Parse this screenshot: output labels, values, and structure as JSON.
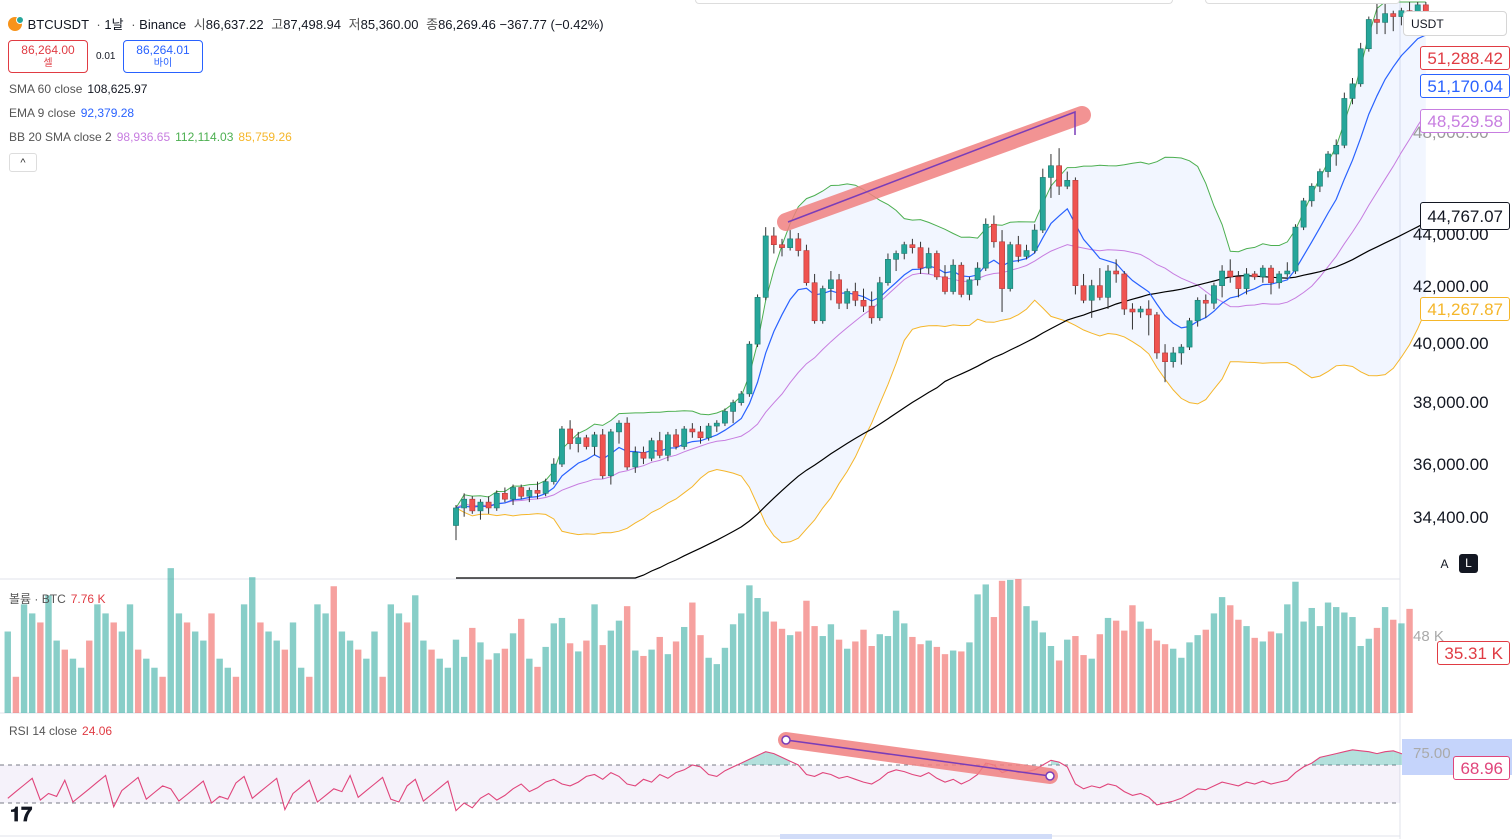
{
  "header": {
    "symbol": "BTCUSDT",
    "interval": "1날",
    "exchange": "Binance",
    "open_label": "시",
    "open": "86,637.22",
    "high_label": "고",
    "high": "87,498.94",
    "low_label": "저",
    "low": "85,360.00",
    "close_label": "종",
    "close": "86,269.46",
    "change": "−367.77 (−0.42%)"
  },
  "trade": {
    "sell_price": "86,264.00",
    "sell_label": "셀",
    "spread": "0.01",
    "buy_price": "86,264.01",
    "buy_label": "바이"
  },
  "indicators": {
    "sma_label": "SMA 60 close",
    "sma_value": "108,625.97",
    "ema_label": "EMA 9 close",
    "ema_value": "92,379.28",
    "bb_label": "BB 20 SMA close 2",
    "bb_basis": "98,936.65",
    "bb_upper": "112,114.03",
    "bb_lower": "85,759.26",
    "collapse_glyph": "^"
  },
  "axis": {
    "currency": "USDT",
    "labels": [
      "44,000.00",
      "42,000.00",
      "40,000.00",
      "38,000.00",
      "36,000.00",
      "34,400.00"
    ],
    "tags": {
      "ema": "51,288.42",
      "sma_blue": "51,170.04",
      "bb_basis": "48,529.58",
      "crosshair": "44,767.07",
      "bb_lower": "41,267.87",
      "volume": "35.31 K",
      "rsi": "68.96"
    },
    "partial_top": "48,000.00",
    "rsi_level": "75.00",
    "vol_partial": "48 K",
    "btn_a": "A",
    "btn_l": "L"
  },
  "volume": {
    "label": "볼륨 · BTC",
    "value": "7.76 K"
  },
  "rsi": {
    "label": "RSI 14 close",
    "value": "24.06"
  },
  "colors": {
    "up": "#26a69a",
    "down": "#ef5350",
    "bb_upper": "#4caf50",
    "bb_lower": "#f5b62a",
    "bb_basis": "#c77de0",
    "ema": "#2962ff",
    "sma": "#000000",
    "highlight": "#f08080",
    "rsi": "#e0457b"
  },
  "chart_data": {
    "type": "candlestick",
    "y_axis_ticks": [
      44000,
      42000,
      40000,
      38000,
      36000,
      34400
    ],
    "candles": [
      [
        34000,
        34700,
        33500,
        34600
      ],
      [
        34600,
        35100,
        34300,
        34900
      ],
      [
        34900,
        35000,
        34400,
        34500
      ],
      [
        34500,
        34900,
        34200,
        34800
      ],
      [
        34800,
        35000,
        34400,
        34600
      ],
      [
        34600,
        35200,
        34500,
        35100
      ],
      [
        35100,
        35300,
        34800,
        34900
      ],
      [
        34900,
        35400,
        34700,
        35300
      ],
      [
        35300,
        35400,
        34900,
        35000
      ],
      [
        35000,
        35300,
        34800,
        35200
      ],
      [
        35200,
        35500,
        34900,
        35100
      ],
      [
        35100,
        35600,
        35000,
        35500
      ],
      [
        35500,
        36300,
        35400,
        36100
      ],
      [
        36100,
        37400,
        36000,
        37300
      ],
      [
        37300,
        37600,
        36600,
        36800
      ],
      [
        36800,
        37200,
        36500,
        37000
      ],
      [
        37000,
        37100,
        36600,
        36700
      ],
      [
        36700,
        37200,
        36400,
        37100
      ],
      [
        37100,
        37300,
        35600,
        35700
      ],
      [
        35700,
        37300,
        35400,
        37200
      ],
      [
        37200,
        37600,
        36800,
        37500
      ],
      [
        37500,
        37700,
        35900,
        36000
      ],
      [
        36000,
        36700,
        35800,
        36500
      ],
      [
        36500,
        36700,
        36100,
        36300
      ],
      [
        36300,
        37000,
        36200,
        36900
      ],
      [
        36900,
        37200,
        36300,
        36400
      ],
      [
        36400,
        37200,
        36200,
        37100
      ],
      [
        37100,
        37300,
        36600,
        36700
      ],
      [
        36700,
        37400,
        36600,
        37300
      ],
      [
        37300,
        37500,
        37000,
        37200
      ],
      [
        37200,
        37400,
        36800,
        37000
      ],
      [
        37000,
        37500,
        36900,
        37400
      ],
      [
        37400,
        37600,
        37200,
        37500
      ],
      [
        37500,
        38000,
        37400,
        37900
      ],
      [
        37900,
        38300,
        37500,
        38200
      ],
      [
        38200,
        38600,
        38100,
        38500
      ],
      [
        38500,
        40300,
        38400,
        40200
      ],
      [
        40200,
        41900,
        40100,
        41800
      ],
      [
        41800,
        44200,
        41700,
        43900
      ],
      [
        43900,
        44200,
        43300,
        43600
      ],
      [
        43600,
        43800,
        43200,
        43500
      ],
      [
        43500,
        44100,
        43400,
        43800
      ],
      [
        43800,
        44000,
        43200,
        43400
      ],
      [
        43400,
        43600,
        42200,
        42300
      ],
      [
        42300,
        42600,
        40900,
        41000
      ],
      [
        41000,
        42200,
        40900,
        42100
      ],
      [
        42100,
        42700,
        41700,
        42400
      ],
      [
        42400,
        42600,
        41400,
        41600
      ],
      [
        41600,
        42100,
        41400,
        42000
      ],
      [
        42000,
        42300,
        41500,
        41700
      ],
      [
        41700,
        42100,
        41300,
        41500
      ],
      [
        41500,
        42000,
        40900,
        41100
      ],
      [
        41100,
        42500,
        41000,
        42300
      ],
      [
        42300,
        43300,
        42200,
        43100
      ],
      [
        43100,
        43400,
        42700,
        43300
      ],
      [
        43300,
        43700,
        43100,
        43600
      ],
      [
        43600,
        43800,
        43300,
        43500
      ],
      [
        43500,
        43700,
        42600,
        42800
      ],
      [
        42800,
        43500,
        42600,
        43300
      ],
      [
        43300,
        43400,
        42400,
        42500
      ],
      [
        42500,
        42900,
        41900,
        42000
      ],
      [
        42000,
        43100,
        41900,
        42900
      ],
      [
        42900,
        43000,
        41800,
        41900
      ],
      [
        41900,
        42500,
        41700,
        42400
      ],
      [
        42400,
        43000,
        42200,
        42800
      ],
      [
        42800,
        44500,
        42700,
        44300
      ],
      [
        44300,
        44600,
        43500,
        43700
      ],
      [
        43700,
        44100,
        41300,
        42100
      ],
      [
        42100,
        43700,
        42000,
        43600
      ],
      [
        43600,
        43900,
        43000,
        43200
      ],
      [
        43200,
        43600,
        43100,
        43400
      ],
      [
        43400,
        44300,
        43300,
        44100
      ],
      [
        44100,
        46200,
        44000,
        45900
      ],
      [
        45900,
        46700,
        45200,
        46300
      ],
      [
        46300,
        46900,
        45300,
        45600
      ],
      [
        45600,
        46100,
        45500,
        45800
      ],
      [
        45800,
        45900,
        41900,
        42200
      ],
      [
        42200,
        42600,
        41600,
        41700
      ],
      [
        41700,
        42400,
        41100,
        42200
      ],
      [
        42200,
        42800,
        41700,
        41800
      ],
      [
        41800,
        42900,
        41400,
        42700
      ],
      [
        42700,
        43100,
        42300,
        42600
      ],
      [
        42600,
        42700,
        41200,
        41400
      ],
      [
        41400,
        41600,
        40700,
        41300
      ],
      [
        41300,
        41500,
        41100,
        41400
      ],
      [
        41400,
        41700,
        40500,
        41200
      ],
      [
        41200,
        41300,
        39700,
        39900
      ],
      [
        39900,
        40200,
        38900,
        39600
      ],
      [
        39600,
        40100,
        39400,
        39900
      ],
      [
        39900,
        40200,
        39500,
        40100
      ],
      [
        40100,
        41100,
        40000,
        41000
      ],
      [
        41000,
        41800,
        40800,
        41700
      ],
      [
        41700,
        41900,
        41100,
        41600
      ],
      [
        41600,
        42300,
        41400,
        42200
      ],
      [
        42200,
        42900,
        41800,
        42700
      ],
      [
        42700,
        43100,
        42300,
        42500
      ],
      [
        42500,
        42700,
        41800,
        42100
      ],
      [
        42100,
        42800,
        41900,
        42600
      ],
      [
        42600,
        42700,
        42400,
        42500
      ],
      [
        42500,
        42900,
        42300,
        42800
      ],
      [
        42800,
        42900,
        41900,
        42300
      ],
      [
        42300,
        42700,
        42100,
        42600
      ],
      [
        42600,
        43000,
        42500,
        42700
      ],
      [
        42700,
        44300,
        42600,
        44200
      ],
      [
        44200,
        45200,
        44100,
        45100
      ],
      [
        45100,
        45700,
        44900,
        45600
      ],
      [
        45600,
        46200,
        45400,
        46100
      ],
      [
        46100,
        46800,
        45900,
        46700
      ],
      [
        46700,
        47200,
        46300,
        47000
      ],
      [
        47000,
        48800,
        46900,
        48600
      ],
      [
        48600,
        49300,
        48400,
        49100
      ],
      [
        49100,
        50500,
        49000,
        50300
      ],
      [
        50300,
        51400,
        50200,
        51300
      ],
      [
        51300,
        52100,
        50800,
        51200
      ],
      [
        51200,
        51900,
        50800,
        51500
      ],
      [
        51500,
        51600,
        50900,
        51400
      ],
      [
        51400,
        51700,
        51100,
        51600
      ],
      [
        51600,
        52000,
        51300,
        51500
      ],
      [
        51500,
        51900,
        51200,
        51800
      ],
      [
        51800,
        51900,
        51100,
        51300
      ]
    ],
    "volume": [
      8.1,
      6.2,
      9.4,
      7.8,
      5.9,
      6.6,
      7.1,
      8.8,
      10.4,
      6.0,
      5.1,
      7.3,
      9.9,
      10.5,
      7.7,
      6.8,
      8.0,
      12.0,
      7.5,
      9.1,
      10.2,
      11.8,
      6.9,
      6.3,
      7.0,
      8.4,
      6.5,
      7.9,
      9.5,
      12.2,
      8.6,
      6.1,
      5.4,
      7.2,
      9.8,
      11.0,
      14.1,
      12.7,
      11.2,
      10.1,
      9.3,
      8.6,
      9.0,
      12.4,
      9.6,
      8.5,
      9.8,
      8.1,
      7.1,
      7.9,
      9.2,
      7.4,
      8.7,
      8.5,
      11.3,
      9.9,
      8.4,
      7.6,
      8.0,
      7.3,
      6.5,
      6.9,
      6.8,
      7.8,
      13.1,
      14.2,
      10.6,
      14.6,
      14.7,
      14.8,
      11.8,
      10.2,
      8.9,
      7.4,
      5.8,
      8.1,
      8.5,
      6.4,
      6.0,
      8.7,
      10.5,
      10.2,
      9.1,
      11.9,
      10.1,
      9.3,
      8.0,
      7.6,
      7.1,
      6.1,
      7.8,
      8.6,
      9.2,
      11.0,
      12.8,
      11.9,
      10.3,
      9.6,
      8.3,
      7.9,
      9.0,
      8.8,
      12.0,
      14.5,
      10.1,
      11.6,
      9.6,
      12.2,
      11.7,
      11.1,
      10.6,
      7.4,
      8.2,
      9.4,
      11.7,
      10.3,
      9.9,
      11.5
    ],
    "rsi": [
      22,
      30,
      25,
      35,
      40,
      33,
      38,
      45,
      50,
      42,
      46,
      52,
      55,
      50,
      48,
      52,
      58,
      60,
      55,
      62,
      58,
      50,
      48,
      55,
      52,
      60,
      56,
      62,
      65,
      70,
      68,
      60,
      58,
      64,
      68,
      72,
      76,
      80,
      84,
      82,
      78,
      74,
      70,
      60,
      58,
      62,
      60,
      56,
      58,
      55,
      52,
      50,
      55,
      62,
      65,
      63,
      60,
      58,
      62,
      56,
      52,
      55,
      50,
      54,
      60,
      72,
      70,
      62,
      65,
      62,
      63,
      65,
      70,
      75,
      73,
      68,
      50,
      45,
      48,
      46,
      50,
      48,
      42,
      38,
      40,
      36,
      28,
      30,
      32,
      35,
      40,
      45,
      44,
      48,
      52,
      50,
      48,
      52,
      50,
      53,
      50,
      52,
      54,
      62,
      68,
      72,
      78,
      80,
      82,
      84,
      86,
      85,
      84,
      82,
      84,
      85,
      82,
      80,
      78,
      69
    ]
  }
}
